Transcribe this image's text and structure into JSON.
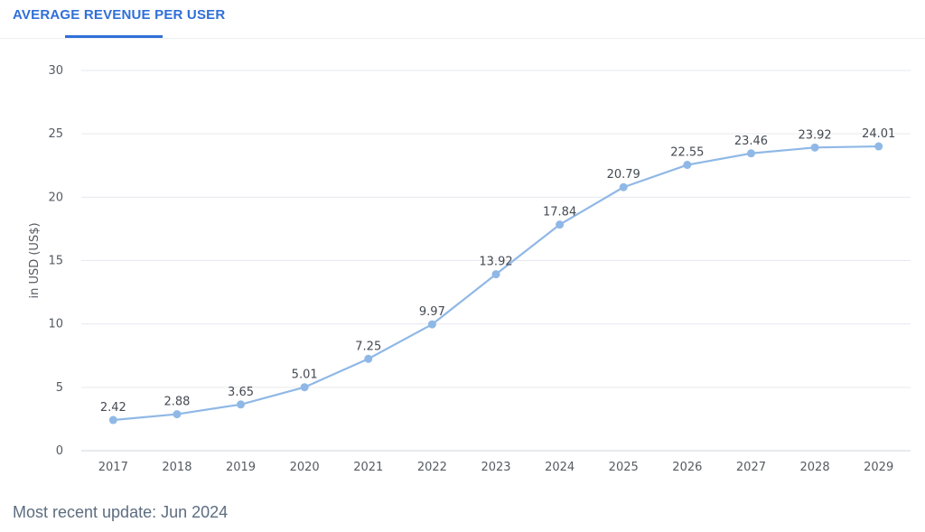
{
  "tab": {
    "label": "AVERAGE REVENUE PER USER"
  },
  "footer": {
    "note": "Most recent update: Jun 2024"
  },
  "colors": {
    "accent": "#2f6fd8",
    "line": "#8fb8e6",
    "grid": "#e6e9ee",
    "axis_text": "#555b63",
    "label_text": "#444a52"
  },
  "chart_data": {
    "type": "line",
    "title": "",
    "xlabel": "",
    "ylabel": "in USD (US$)",
    "ylim": [
      0,
      30
    ],
    "yticks": [
      "0",
      "5",
      "10",
      "15",
      "20",
      "25",
      "30"
    ],
    "grid": true,
    "categories": [
      "2017",
      "2018",
      "2019",
      "2020",
      "2021",
      "2022",
      "2023",
      "2024",
      "2025",
      "2026",
      "2027",
      "2028",
      "2029"
    ],
    "series": [
      {
        "values": [
          2.42,
          2.88,
          3.65,
          5.01,
          7.25,
          9.97,
          13.92,
          17.84,
          20.79,
          22.55,
          23.46,
          23.92,
          24.01
        ],
        "labels": [
          "2.42",
          "2.88",
          "3.65",
          "5.01",
          "7.25",
          "9.97",
          "13.92",
          "17.84",
          "20.79",
          "22.55",
          "23.46",
          "23.92",
          "24.01"
        ]
      }
    ]
  }
}
